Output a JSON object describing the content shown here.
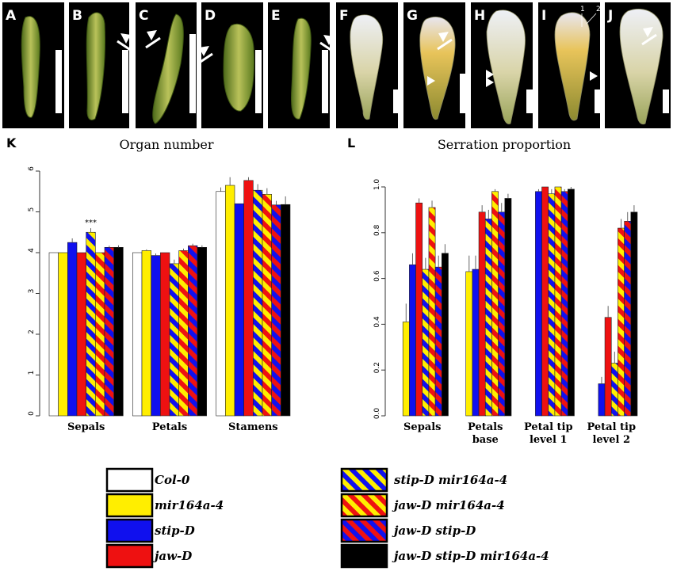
{
  "panels": [
    {
      "letter": "A",
      "arrow": null,
      "arrowheads": 0,
      "numbers": []
    },
    {
      "letter": "B",
      "arrow": "tip-right",
      "arrowheads": 0,
      "numbers": []
    },
    {
      "letter": "C",
      "arrow": "tip-left",
      "arrowheads": 0,
      "numbers": []
    },
    {
      "letter": "D",
      "arrow": "tip-left",
      "arrowheads": 0,
      "numbers": []
    },
    {
      "letter": "E",
      "arrow": "tip-right",
      "arrowheads": 0,
      "numbers": []
    },
    {
      "letter": "F",
      "arrow": null,
      "arrowheads": 0,
      "numbers": []
    },
    {
      "letter": "G",
      "arrow": "tip-right",
      "arrowheads": 1,
      "numbers": []
    },
    {
      "letter": "H",
      "arrow": null,
      "arrowheads": 2,
      "numbers": []
    },
    {
      "letter": "I",
      "arrow": null,
      "arrowheads": 1,
      "numbers": [
        "1",
        "2"
      ]
    },
    {
      "letter": "J",
      "arrow": "tip-right",
      "arrowheads": 0,
      "numbers": []
    }
  ],
  "legend": [
    {
      "label": "Col-0",
      "fill": "solid",
      "colors": [
        "#ffffff"
      ]
    },
    {
      "label": "mir164a-4",
      "fill": "solid",
      "colors": [
        "#ffee00"
      ]
    },
    {
      "label": "stip-D",
      "fill": "solid",
      "colors": [
        "#1010ee"
      ]
    },
    {
      "label": "jaw-D",
      "fill": "solid",
      "colors": [
        "#ee1111"
      ]
    },
    {
      "label": "stip-D mir164a-4",
      "fill": "stripe",
      "colors": [
        "#ffee00",
        "#1010ee"
      ]
    },
    {
      "label": "jaw-D mir164a-4",
      "fill": "stripe",
      "colors": [
        "#ffee00",
        "#ee1111"
      ]
    },
    {
      "label": "jaw-D stip-D",
      "fill": "stripe",
      "colors": [
        "#1010ee",
        "#ee1111"
      ]
    },
    {
      "label": "jaw-D stip-D mir164a-4",
      "fill": "solid",
      "colors": [
        "#000000"
      ]
    }
  ],
  "chart_data": [
    {
      "type": "bar",
      "panel_letter": "K",
      "title": "Organ number",
      "categories": [
        "Sepals",
        "Petals",
        "Stamens"
      ],
      "ylim": [
        0,
        6
      ],
      "yticks": [
        "0",
        "1",
        "2",
        "3",
        "4",
        "5",
        "6"
      ],
      "series": [
        {
          "name": "Col-0",
          "values": [
            4.0,
            4.0,
            5.5
          ],
          "errors": [
            0,
            0,
            0.1
          ]
        },
        {
          "name": "mir164a-4",
          "values": [
            4.0,
            4.05,
            5.65
          ],
          "errors": [
            0,
            0.03,
            0.2
          ]
        },
        {
          "name": "stip-D",
          "values": [
            4.25,
            3.93,
            5.2
          ],
          "errors": [
            0.1,
            0.05,
            0
          ]
        },
        {
          "name": "jaw-D",
          "values": [
            4.0,
            4.0,
            5.77
          ],
          "errors": [
            0,
            0,
            0.08
          ]
        },
        {
          "name": "stip-D mir164a-4",
          "values": [
            4.5,
            3.73,
            5.53
          ],
          "errors": [
            0.1,
            0.1,
            0.15
          ]
        },
        {
          "name": "jaw-D mir164a-4",
          "values": [
            4.0,
            4.05,
            5.43
          ],
          "errors": [
            0,
            0.05,
            0.15
          ]
        },
        {
          "name": "jaw-D stip-D",
          "values": [
            4.13,
            4.17,
            5.17
          ],
          "errors": [
            0.04,
            0.05,
            0.1
          ]
        },
        {
          "name": "jaw-D stip-D mir164a-4",
          "values": [
            4.13,
            4.13,
            5.18
          ],
          "errors": [
            0.05,
            0.05,
            0.2
          ]
        }
      ],
      "annotations": [
        {
          "category": "Sepals",
          "series": "stip-D mir164a-4",
          "text": "***"
        }
      ]
    },
    {
      "type": "bar",
      "panel_letter": "L",
      "title": "Serration proportion",
      "categories": [
        "Sepals",
        "Petals base",
        "Petal tip level 1",
        "Petal tip level 2"
      ],
      "category_labels": [
        [
          "Sepals"
        ],
        [
          "Petals",
          "base"
        ],
        [
          "Petal tip",
          "level 1"
        ],
        [
          "Petal tip",
          "level 2"
        ]
      ],
      "ylim": [
        0,
        1
      ],
      "yticks": [
        "0.0",
        "0.2",
        "0.4",
        "0.6",
        "0.8",
        "1.0"
      ],
      "series": [
        {
          "name": "Col-0",
          "values": [
            0,
            0,
            0,
            0
          ],
          "errors": [
            0,
            0,
            0,
            0
          ]
        },
        {
          "name": "mir164a-4",
          "values": [
            0.41,
            0.63,
            0,
            0
          ],
          "errors": [
            0.08,
            0.07,
            0,
            0
          ]
        },
        {
          "name": "stip-D",
          "values": [
            0.66,
            0.64,
            0.98,
            0.14
          ],
          "errors": [
            0.05,
            0.06,
            0.01,
            0.03
          ]
        },
        {
          "name": "jaw-D",
          "values": [
            0.93,
            0.89,
            1.0,
            0.43
          ],
          "errors": [
            0.02,
            0.03,
            0,
            0.05
          ]
        },
        {
          "name": "stip-D mir164a-4",
          "values": [
            0.64,
            0.86,
            0.97,
            0.23
          ],
          "errors": [
            0.05,
            0.04,
            0.02,
            0.05
          ]
        },
        {
          "name": "jaw-D mir164a-4",
          "values": [
            0.91,
            0.98,
            1.0,
            0.82
          ],
          "errors": [
            0.03,
            0.01,
            0,
            0.04
          ]
        },
        {
          "name": "jaw-D stip-D",
          "values": [
            0.65,
            0.89,
            0.98,
            0.85
          ],
          "errors": [
            0.05,
            0.04,
            0.01,
            0.04
          ]
        },
        {
          "name": "jaw-D stip-D mir164a-4",
          "values": [
            0.71,
            0.95,
            0.99,
            0.89
          ],
          "errors": [
            0.04,
            0.02,
            0.01,
            0.03
          ]
        }
      ]
    }
  ]
}
